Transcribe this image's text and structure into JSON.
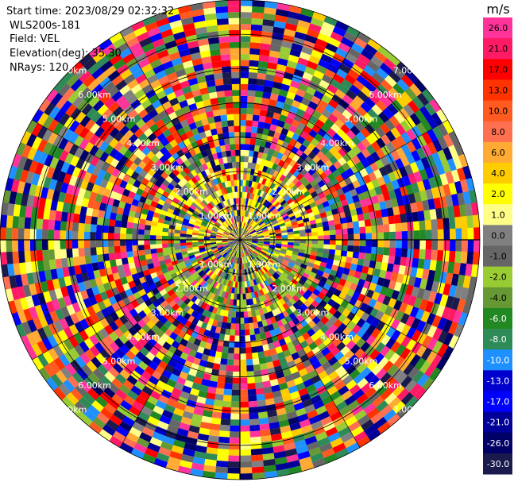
{
  "chart_data": {
    "type": "ppi",
    "header": {
      "start_time": "Start time: 2023/08/29 02:32:32",
      "instrument": "WLS200s-181",
      "field": "Field: VEL",
      "elevation": "Elevation(deg): 35.30",
      "nrays": "NRays: 120"
    },
    "nrays": 120,
    "range_rings": [
      {
        "label": "1.00km"
      },
      {
        "label": "2.00km"
      },
      {
        "label": "3.00km"
      },
      {
        "label": "4.00km"
      },
      {
        "label": "5.00km"
      },
      {
        "label": "6.00km"
      },
      {
        "label": "7.00km"
      }
    ],
    "colorbar": {
      "unit": "m/s",
      "ticks": [
        "26.0",
        "21.0",
        "17.0",
        "13.0",
        "10.0",
        "8.0",
        "6.0",
        "4.0",
        "2.0",
        "1.0",
        "0.0",
        "-1.0",
        "-2.0",
        "-4.0",
        "-6.0",
        "-8.0",
        "-10.0",
        "-13.0",
        "-17.0",
        "-21.0",
        "-26.0",
        "-30.0"
      ],
      "colors": [
        "#ff3399",
        "#ff1a66",
        "#ff0000",
        "#ff3300",
        "#ff5a1f",
        "#ff7050",
        "#ffaa33",
        "#ffcc00",
        "#ffff00",
        "#ffff88",
        "#808080",
        "#666666",
        "#99cc33",
        "#669933",
        "#228822",
        "#2e8b57",
        "#1e90ff",
        "#0000cd",
        "#0000ff",
        "#000099",
        "#000066",
        "#1a1a4d"
      ]
    }
  }
}
